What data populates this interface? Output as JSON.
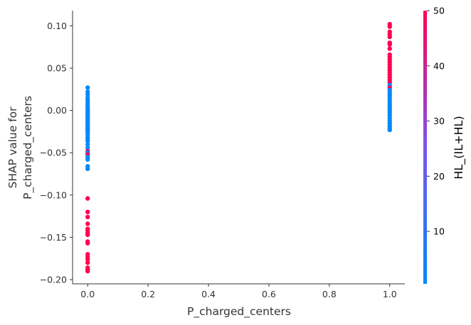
{
  "chart_data": {
    "type": "scatter",
    "xlabel": "P_charged_centers",
    "ylabel_lines": [
      "SHAP value for",
      "P_charged_centers"
    ],
    "xlim": [
      -0.05,
      1.05
    ],
    "ylim": [
      -0.205,
      0.118
    ],
    "x_ticks": [
      0.0,
      0.2,
      0.4,
      0.6,
      0.8,
      1.0
    ],
    "x_tick_labels": [
      "0.0",
      "0.2",
      "0.4",
      "0.6",
      "0.8",
      "1.0"
    ],
    "y_ticks": [
      0.1,
      0.05,
      0.0,
      -0.05,
      -0.1,
      -0.15,
      -0.2
    ],
    "y_tick_labels": [
      "0.10",
      "0.05",
      "0.00",
      "−0.05",
      "−0.10",
      "−0.15",
      "−0.20"
    ],
    "grid": false,
    "colorbar": {
      "label": "HL_(IL+HL)",
      "range": [
        0.5,
        50
      ],
      "ticks": [
        10,
        20,
        30,
        40,
        50
      ],
      "tick_labels": [
        "10",
        "20",
        "30",
        "40",
        "50"
      ],
      "color_low": "#008bfb",
      "color_high": "#ff0052"
    },
    "series": [
      {
        "x": 0.0,
        "points": [
          {
            "y": 0.027,
            "c": 1
          },
          {
            "y": 0.022,
            "c": 1
          },
          {
            "y": 0.019,
            "c": 1
          },
          {
            "y": 0.015,
            "c": 1
          },
          {
            "y": 0.012,
            "c": 1
          },
          {
            "y": 0.009,
            "c": 1
          },
          {
            "y": 0.006,
            "c": 1
          },
          {
            "y": 0.003,
            "c": 1
          },
          {
            "y": 0.001,
            "c": 1
          },
          {
            "y": -0.001,
            "c": 1
          },
          {
            "y": -0.003,
            "c": 1
          },
          {
            "y": -0.005,
            "c": 1
          },
          {
            "y": -0.007,
            "c": 1
          },
          {
            "y": -0.009,
            "c": 1
          },
          {
            "y": -0.011,
            "c": 1
          },
          {
            "y": -0.013,
            "c": 1
          },
          {
            "y": -0.015,
            "c": 1
          },
          {
            "y": -0.017,
            "c": 1
          },
          {
            "y": -0.019,
            "c": 1
          },
          {
            "y": -0.021,
            "c": 1
          },
          {
            "y": -0.023,
            "c": 1
          },
          {
            "y": -0.025,
            "c": 1
          },
          {
            "y": -0.027,
            "c": 1
          },
          {
            "y": -0.03,
            "c": 1
          },
          {
            "y": -0.033,
            "c": 1
          },
          {
            "y": -0.036,
            "c": 1
          },
          {
            "y": -0.04,
            "c": 1
          },
          {
            "y": -0.044,
            "c": 1
          },
          {
            "y": -0.048,
            "c": 45
          },
          {
            "y": -0.05,
            "c": 1
          },
          {
            "y": -0.052,
            "c": 45
          },
          {
            "y": -0.055,
            "c": 1
          },
          {
            "y": -0.058,
            "c": 1
          },
          {
            "y": -0.066,
            "c": 1
          },
          {
            "y": -0.069,
            "c": 1
          },
          {
            "y": -0.104,
            "c": 50
          },
          {
            "y": -0.12,
            "c": 50
          },
          {
            "y": -0.126,
            "c": 50
          },
          {
            "y": -0.134,
            "c": 50
          },
          {
            "y": -0.14,
            "c": 50
          },
          {
            "y": -0.142,
            "c": 50
          },
          {
            "y": -0.145,
            "c": 50
          },
          {
            "y": -0.147,
            "c": 50
          },
          {
            "y": -0.155,
            "c": 50
          },
          {
            "y": -0.157,
            "c": 50
          },
          {
            "y": -0.17,
            "c": 50
          },
          {
            "y": -0.173,
            "c": 50
          },
          {
            "y": -0.176,
            "c": 50
          },
          {
            "y": -0.18,
            "c": 50
          },
          {
            "y": -0.186,
            "c": 50
          },
          {
            "y": -0.188,
            "c": 50
          },
          {
            "y": -0.19,
            "c": 50
          }
        ]
      },
      {
        "x": 1.0,
        "points": [
          {
            "y": 0.102,
            "c": 50
          },
          {
            "y": 0.099,
            "c": 50
          },
          {
            "y": 0.093,
            "c": 50
          },
          {
            "y": 0.09,
            "c": 50
          },
          {
            "y": 0.087,
            "c": 50
          },
          {
            "y": 0.08,
            "c": 50
          },
          {
            "y": 0.078,
            "c": 50
          },
          {
            "y": 0.073,
            "c": 50
          },
          {
            "y": 0.066,
            "c": 50
          },
          {
            "y": 0.063,
            "c": 50
          },
          {
            "y": 0.06,
            "c": 50
          },
          {
            "y": 0.057,
            "c": 50
          },
          {
            "y": 0.054,
            "c": 50
          },
          {
            "y": 0.051,
            "c": 50
          },
          {
            "y": 0.048,
            "c": 50
          },
          {
            "y": 0.045,
            "c": 50
          },
          {
            "y": 0.042,
            "c": 50
          },
          {
            "y": 0.039,
            "c": 50
          },
          {
            "y": 0.036,
            "c": 50
          },
          {
            "y": 0.033,
            "c": 50
          },
          {
            "y": 0.03,
            "c": 1
          },
          {
            "y": 0.027,
            "c": 45
          },
          {
            "y": 0.024,
            "c": 1
          },
          {
            "y": 0.021,
            "c": 1
          },
          {
            "y": 0.018,
            "c": 1
          },
          {
            "y": 0.015,
            "c": 1
          },
          {
            "y": 0.012,
            "c": 1
          },
          {
            "y": 0.009,
            "c": 1
          },
          {
            "y": 0.006,
            "c": 1
          },
          {
            "y": 0.003,
            "c": 1
          },
          {
            "y": 0.0,
            "c": 1
          },
          {
            "y": -0.003,
            "c": 1
          },
          {
            "y": -0.006,
            "c": 1
          },
          {
            "y": -0.009,
            "c": 1
          },
          {
            "y": -0.012,
            "c": 1
          },
          {
            "y": -0.015,
            "c": 1
          },
          {
            "y": -0.018,
            "c": 1
          },
          {
            "y": -0.021,
            "c": 1
          },
          {
            "y": -0.023,
            "c": 1
          }
        ]
      }
    ]
  }
}
